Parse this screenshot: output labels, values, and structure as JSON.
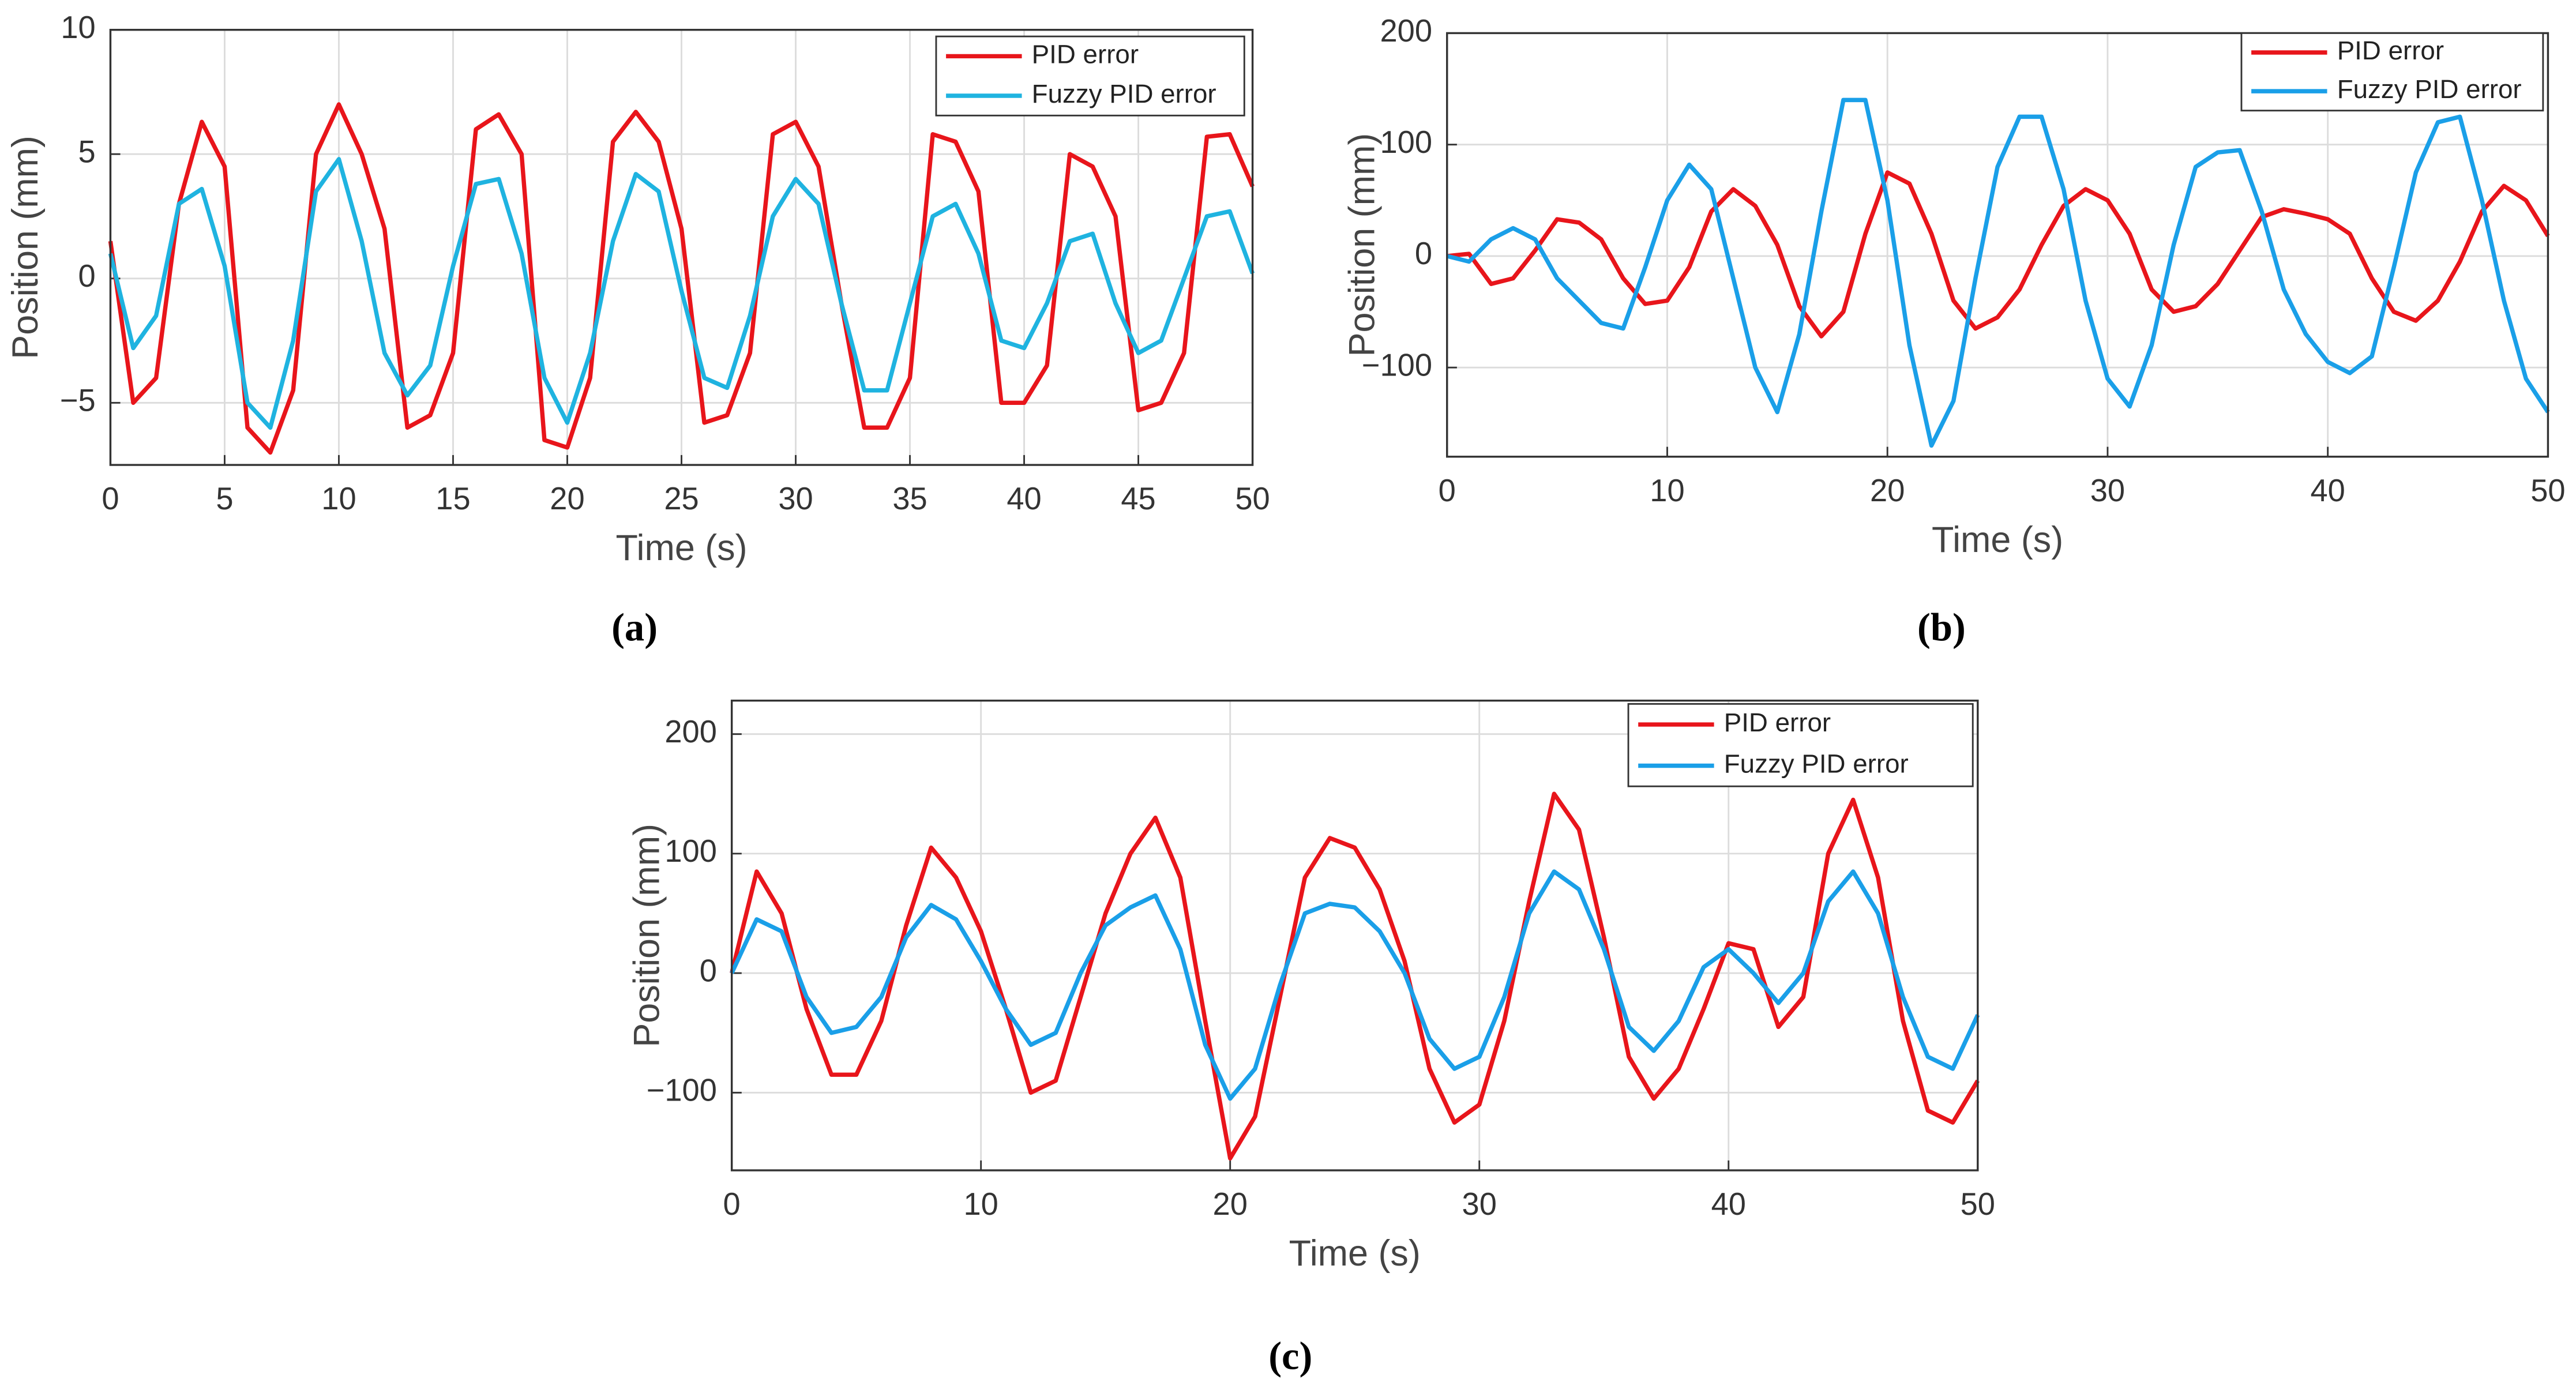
{
  "chart_data": [
    {
      "type": "line",
      "caption": "(a)",
      "xlabel": "Time (s)",
      "ylabel": "Position (mm)",
      "x": [
        0,
        1,
        2,
        3,
        4,
        5,
        6,
        7,
        8,
        9,
        10,
        11,
        12,
        13,
        14,
        15,
        16,
        17,
        18,
        19,
        20,
        21,
        22,
        23,
        24,
        25,
        26,
        27,
        28,
        29,
        30,
        31,
        32,
        33,
        34,
        35,
        36,
        37,
        38,
        39,
        40,
        41,
        42,
        43,
        44,
        45,
        46,
        47,
        48,
        49,
        50
      ],
      "series": [
        {
          "name": "PID error",
          "color": "#e8151b",
          "values": [
            1.5,
            -5,
            -4,
            3,
            6.3,
            4.5,
            -6,
            -7,
            -4.5,
            5,
            7,
            5,
            2,
            -6,
            -5.5,
            -3,
            6,
            6.6,
            5,
            -6.5,
            -6.8,
            -4,
            5.5,
            6.7,
            5.5,
            2,
            -5.8,
            -5.5,
            -3,
            5.8,
            6.3,
            4.5,
            -1,
            -6,
            -6,
            -4,
            5.8,
            5.5,
            3.5,
            -5,
            -5,
            -3.5,
            5,
            4.5,
            2.5,
            -5.3,
            -5,
            -3,
            5.7,
            5.8,
            3.7
          ]
        },
        {
          "name": "Fuzzy PID error",
          "color": "#1fb3e0",
          "values": [
            1,
            -2.8,
            -1.5,
            3,
            3.6,
            0.5,
            -5,
            -6,
            -2.5,
            3.5,
            4.8,
            1.5,
            -3,
            -4.7,
            -3.5,
            0.5,
            3.8,
            4,
            1,
            -4,
            -5.8,
            -3,
            1.5,
            4.2,
            3.5,
            -0.5,
            -4,
            -4.4,
            -1.5,
            2.5,
            4,
            3,
            -1,
            -4.5,
            -4.5,
            -1,
            2.5,
            3,
            1,
            -2.5,
            -2.8,
            -1,
            1.5,
            1.8,
            -1,
            -3,
            -2.5,
            0,
            2.5,
            2.7,
            0.2
          ]
        }
      ],
      "xlim": [
        0,
        50
      ],
      "xticks": [
        0,
        5,
        10,
        15,
        20,
        25,
        30,
        35,
        40,
        45,
        50
      ],
      "ylim": [
        -7.5,
        10
      ],
      "yticks": [
        {
          "value": -5,
          "label": "−5"
        },
        0,
        5,
        10
      ],
      "grid": true,
      "legend": "top-right"
    },
    {
      "type": "line",
      "caption": "(b)",
      "xlabel": "Time (s)",
      "ylabel": "Position (mm)",
      "x": [
        0,
        1,
        2,
        3,
        4,
        5,
        6,
        7,
        8,
        9,
        10,
        11,
        12,
        13,
        14,
        15,
        16,
        17,
        18,
        19,
        20,
        21,
        22,
        23,
        24,
        25,
        26,
        27,
        28,
        29,
        30,
        31,
        32,
        33,
        34,
        35,
        36,
        37,
        38,
        39,
        40,
        41,
        42,
        43,
        44,
        45,
        46,
        47,
        48,
        49,
        50
      ],
      "series": [
        {
          "name": "PID error",
          "color": "#e8151b",
          "values": [
            0,
            2,
            -25,
            -20,
            5,
            33,
            30,
            15,
            -20,
            -43,
            -40,
            -10,
            40,
            60,
            45,
            10,
            -45,
            -72,
            -50,
            20,
            75,
            65,
            20,
            -40,
            -65,
            -55,
            -30,
            10,
            45,
            60,
            50,
            20,
            -30,
            -50,
            -45,
            -25,
            5,
            35,
            42,
            38,
            33,
            20,
            -20,
            -50,
            -58,
            -40,
            -5,
            40,
            63,
            50,
            18
          ]
        },
        {
          "name": "Fuzzy PID error",
          "color": "#1a9fe8",
          "values": [
            0,
            -5,
            15,
            25,
            15,
            -20,
            -40,
            -60,
            -65,
            -10,
            50,
            82,
            60,
            -20,
            -100,
            -140,
            -70,
            40,
            140,
            140,
            50,
            -80,
            -170,
            -130,
            -20,
            80,
            125,
            125,
            60,
            -40,
            -110,
            -135,
            -80,
            10,
            80,
            93,
            95,
            40,
            -30,
            -70,
            -95,
            -105,
            -90,
            -10,
            75,
            120,
            125,
            50,
            -40,
            -110,
            -140
          ]
        }
      ],
      "xlim": [
        0,
        50
      ],
      "xticks": [
        0,
        10,
        20,
        30,
        40,
        50
      ],
      "ylim": [
        -180,
        200
      ],
      "yticks": [
        {
          "value": -100,
          "label": "−100"
        },
        0,
        100,
        200
      ],
      "grid": true,
      "legend": "top-right"
    },
    {
      "type": "line",
      "caption": "(c)",
      "xlabel": "Time (s)",
      "ylabel": "Position (mm)",
      "x": [
        0,
        1,
        2,
        3,
        4,
        5,
        6,
        7,
        8,
        9,
        10,
        11,
        12,
        13,
        14,
        15,
        16,
        17,
        18,
        19,
        20,
        21,
        22,
        23,
        24,
        25,
        26,
        27,
        28,
        29,
        30,
        31,
        32,
        33,
        34,
        35,
        36,
        37,
        38,
        39,
        40,
        41,
        42,
        43,
        44,
        45,
        46,
        47,
        48,
        49,
        50
      ],
      "series": [
        {
          "name": "PID error",
          "color": "#e8151b",
          "values": [
            0,
            85,
            50,
            -30,
            -85,
            -85,
            -40,
            40,
            105,
            80,
            35,
            -30,
            -100,
            -90,
            -20,
            50,
            100,
            130,
            80,
            -40,
            -155,
            -120,
            -20,
            80,
            113,
            105,
            70,
            10,
            -80,
            -125,
            -110,
            -40,
            60,
            150,
            120,
            30,
            -70,
            -105,
            -80,
            -30,
            25,
            20,
            -45,
            -20,
            100,
            145,
            80,
            -40,
            -115,
            -125,
            -90
          ]
        },
        {
          "name": "Fuzzy PID error",
          "color": "#1a9fe8",
          "values": [
            0,
            45,
            35,
            -20,
            -50,
            -45,
            -20,
            30,
            57,
            45,
            10,
            -30,
            -60,
            -50,
            0,
            40,
            55,
            65,
            20,
            -60,
            -105,
            -80,
            -10,
            50,
            58,
            55,
            35,
            0,
            -55,
            -80,
            -70,
            -20,
            50,
            85,
            70,
            20,
            -45,
            -65,
            -40,
            5,
            20,
            0,
            -25,
            0,
            60,
            85,
            50,
            -20,
            -70,
            -80,
            -35
          ]
        }
      ],
      "xlim": [
        0,
        50
      ],
      "xticks": [
        0,
        10,
        20,
        30,
        40,
        50
      ],
      "ylim": [
        -165,
        228
      ],
      "yticks": [
        {
          "value": -100,
          "label": "−100"
        },
        0,
        100,
        200
      ],
      "grid": true,
      "legend": "top-right"
    }
  ]
}
